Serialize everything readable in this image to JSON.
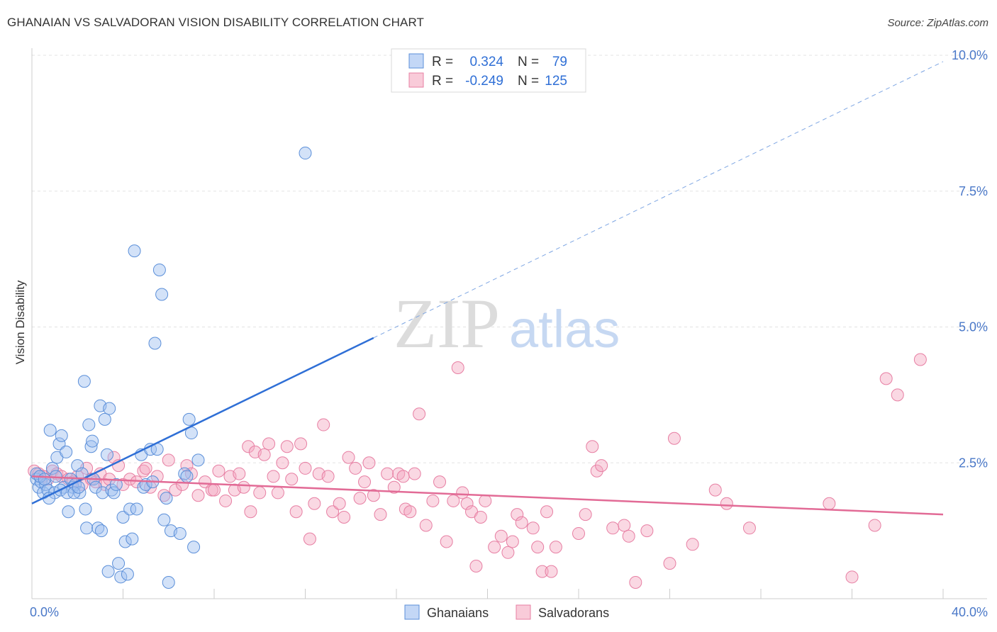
{
  "header": {
    "title": "GHANAIAN VS SALVADORAN VISION DISABILITY CORRELATION CHART",
    "source": "Source: ZipAtlas.com"
  },
  "watermark": {
    "part1": "ZIP",
    "part2": "atlas"
  },
  "chart_data": {
    "type": "scatter",
    "title": "GHANAIAN VS SALVADORAN VISION DISABILITY CORRELATION CHART",
    "xlabel": "",
    "ylabel": "Vision Disability",
    "xlim": [
      0,
      40
    ],
    "ylim": [
      0,
      10
    ],
    "x_tick_labels": [
      {
        "value": 0,
        "label": "0.0%"
      },
      {
        "value": 40,
        "label": "40.0%"
      }
    ],
    "y_tick_labels": [
      {
        "value": 2.5,
        "label": "2.5%"
      },
      {
        "value": 5.0,
        "label": "5.0%"
      },
      {
        "value": 7.5,
        "label": "7.5%"
      },
      {
        "value": 10.0,
        "label": "10.0%"
      }
    ],
    "legend": {
      "position": "top-center",
      "entries": [
        {
          "name": "Ghanaians",
          "r_label": "R =",
          "r_value": "0.324",
          "n_label": "N =",
          "n_value": "79",
          "color": "#9dbff0"
        },
        {
          "name": "Salvadorans",
          "r_label": "R =",
          "r_value": "-0.249",
          "n_label": "N =",
          "n_value": "125",
          "color": "#f4a9c2"
        }
      ]
    },
    "series": [
      {
        "name": "Ghanaians",
        "color": "#9dbff0",
        "stroke": "#5b8fd9",
        "trend": {
          "x0": 0,
          "y0": 1.75,
          "x1": 15.0,
          "y1": 4.8,
          "solid_to": 15.0,
          "dash_to": 40.0,
          "color": "#2f6fd6"
        },
        "points": [
          [
            0.2,
            2.2
          ],
          [
            0.3,
            2.05
          ],
          [
            0.4,
            2.15
          ],
          [
            0.5,
            1.95
          ],
          [
            0.6,
            2.1
          ],
          [
            0.7,
            2.0
          ],
          [
            0.8,
            3.1
          ],
          [
            0.9,
            2.4
          ],
          [
            1.0,
            1.95
          ],
          [
            1.1,
            2.6
          ],
          [
            1.2,
            2.85
          ],
          [
            1.3,
            3.0
          ],
          [
            1.4,
            2.05
          ],
          [
            1.5,
            2.7
          ],
          [
            1.6,
            1.6
          ],
          [
            1.7,
            2.2
          ],
          [
            1.8,
            2.05
          ],
          [
            1.9,
            2.1
          ],
          [
            2.0,
            2.45
          ],
          [
            2.1,
            1.95
          ],
          [
            2.2,
            2.3
          ],
          [
            2.3,
            4.0
          ],
          [
            2.35,
            1.65
          ],
          [
            2.4,
            1.3
          ],
          [
            2.5,
            3.2
          ],
          [
            2.6,
            2.8
          ],
          [
            2.65,
            2.9
          ],
          [
            2.7,
            2.2
          ],
          [
            2.8,
            2.05
          ],
          [
            2.9,
            1.3
          ],
          [
            3.0,
            3.55
          ],
          [
            3.1,
            1.95
          ],
          [
            3.2,
            3.3
          ],
          [
            3.3,
            2.65
          ],
          [
            3.4,
            3.5
          ],
          [
            3.5,
            2.0
          ],
          [
            3.6,
            1.95
          ],
          [
            3.7,
            2.1
          ],
          [
            3.8,
            0.65
          ],
          [
            3.9,
            0.4
          ],
          [
            4.0,
            1.5
          ],
          [
            4.1,
            1.05
          ],
          [
            4.2,
            0.45
          ],
          [
            4.3,
            1.65
          ],
          [
            4.4,
            1.1
          ],
          [
            4.5,
            6.4
          ],
          [
            4.6,
            1.65
          ],
          [
            4.8,
            2.65
          ],
          [
            4.9,
            2.05
          ],
          [
            5.0,
            2.1
          ],
          [
            5.2,
            2.75
          ],
          [
            5.3,
            2.15
          ],
          [
            5.4,
            4.7
          ],
          [
            5.5,
            2.75
          ],
          [
            5.6,
            6.05
          ],
          [
            5.7,
            5.6
          ],
          [
            5.8,
            1.45
          ],
          [
            5.9,
            1.85
          ],
          [
            6.0,
            0.3
          ],
          [
            6.1,
            1.25
          ],
          [
            6.5,
            1.2
          ],
          [
            6.7,
            2.3
          ],
          [
            6.8,
            2.25
          ],
          [
            6.9,
            3.3
          ],
          [
            7.0,
            3.05
          ],
          [
            7.1,
            0.95
          ],
          [
            7.3,
            2.55
          ],
          [
            0.2,
            2.3
          ],
          [
            0.35,
            2.25
          ],
          [
            0.55,
            2.2
          ],
          [
            0.75,
            1.85
          ],
          [
            1.05,
            2.25
          ],
          [
            1.25,
            2.0
          ],
          [
            1.55,
            1.95
          ],
          [
            1.85,
            1.95
          ],
          [
            2.05,
            2.05
          ],
          [
            3.05,
            1.25
          ],
          [
            3.35,
            0.5
          ],
          [
            12.0,
            8.2
          ]
        ]
      },
      {
        "name": "Salvadorans",
        "color": "#f4a9c2",
        "stroke": "#e77fa3",
        "trend": {
          "x0": 0,
          "y0": 2.25,
          "x1": 40.0,
          "y1": 1.55,
          "color": "#e26b96"
        },
        "points": [
          [
            0.1,
            2.35
          ],
          [
            0.3,
            2.3
          ],
          [
            0.5,
            2.25
          ],
          [
            0.7,
            2.2
          ],
          [
            0.9,
            2.35
          ],
          [
            1.1,
            2.3
          ],
          [
            1.3,
            2.25
          ],
          [
            1.6,
            2.2
          ],
          [
            1.8,
            2.15
          ],
          [
            2.0,
            2.25
          ],
          [
            2.2,
            2.1
          ],
          [
            2.4,
            2.4
          ],
          [
            2.6,
            2.2
          ],
          [
            2.8,
            2.15
          ],
          [
            3.0,
            2.3
          ],
          [
            3.2,
            2.1
          ],
          [
            3.4,
            2.2
          ],
          [
            3.6,
            2.6
          ],
          [
            3.8,
            2.45
          ],
          [
            4.0,
            2.1
          ],
          [
            4.3,
            2.2
          ],
          [
            4.6,
            2.15
          ],
          [
            4.9,
            2.35
          ],
          [
            5.2,
            2.05
          ],
          [
            5.5,
            2.25
          ],
          [
            5.8,
            1.9
          ],
          [
            6.0,
            2.55
          ],
          [
            6.3,
            2.0
          ],
          [
            6.6,
            2.1
          ],
          [
            6.8,
            2.45
          ],
          [
            7.0,
            2.3
          ],
          [
            7.3,
            1.9
          ],
          [
            7.6,
            2.15
          ],
          [
            7.9,
            2.0
          ],
          [
            8.2,
            2.35
          ],
          [
            8.5,
            1.8
          ],
          [
            8.7,
            2.25
          ],
          [
            8.9,
            2.0
          ],
          [
            9.1,
            2.3
          ],
          [
            9.3,
            2.05
          ],
          [
            9.5,
            2.8
          ],
          [
            9.6,
            1.6
          ],
          [
            9.8,
            2.7
          ],
          [
            10.0,
            1.95
          ],
          [
            10.2,
            2.65
          ],
          [
            10.4,
            2.85
          ],
          [
            10.6,
            2.25
          ],
          [
            10.8,
            1.95
          ],
          [
            11.0,
            2.5
          ],
          [
            11.2,
            2.8
          ],
          [
            11.4,
            2.2
          ],
          [
            11.6,
            1.6
          ],
          [
            11.8,
            2.85
          ],
          [
            12.0,
            2.4
          ],
          [
            12.2,
            1.1
          ],
          [
            12.4,
            1.75
          ],
          [
            12.6,
            2.3
          ],
          [
            12.8,
            3.2
          ],
          [
            13.0,
            2.25
          ],
          [
            13.2,
            1.6
          ],
          [
            13.5,
            1.75
          ],
          [
            13.7,
            1.5
          ],
          [
            13.9,
            2.6
          ],
          [
            14.2,
            2.4
          ],
          [
            14.4,
            1.85
          ],
          [
            14.6,
            2.15
          ],
          [
            14.8,
            2.5
          ],
          [
            15.0,
            1.9
          ],
          [
            15.3,
            1.55
          ],
          [
            15.6,
            2.3
          ],
          [
            15.9,
            2.05
          ],
          [
            16.1,
            2.3
          ],
          [
            16.4,
            1.65
          ],
          [
            16.6,
            1.6
          ],
          [
            16.8,
            2.3
          ],
          [
            17.0,
            3.4
          ],
          [
            17.3,
            1.35
          ],
          [
            17.6,
            1.8
          ],
          [
            17.9,
            2.15
          ],
          [
            18.2,
            1.05
          ],
          [
            18.5,
            1.8
          ],
          [
            18.7,
            4.25
          ],
          [
            18.9,
            1.95
          ],
          [
            19.1,
            1.75
          ],
          [
            19.3,
            1.6
          ],
          [
            19.5,
            0.6
          ],
          [
            19.7,
            1.5
          ],
          [
            19.9,
            1.8
          ],
          [
            20.3,
            0.95
          ],
          [
            20.6,
            1.15
          ],
          [
            20.9,
            0.85
          ],
          [
            21.1,
            1.05
          ],
          [
            21.3,
            1.55
          ],
          [
            22.0,
            1.3
          ],
          [
            22.2,
            0.95
          ],
          [
            22.4,
            0.5
          ],
          [
            22.6,
            1.6
          ],
          [
            22.8,
            0.5
          ],
          [
            23.0,
            0.95
          ],
          [
            24.0,
            1.2
          ],
          [
            24.3,
            1.55
          ],
          [
            24.6,
            2.8
          ],
          [
            24.8,
            2.35
          ],
          [
            25.0,
            2.45
          ],
          [
            26.0,
            1.35
          ],
          [
            26.2,
            1.15
          ],
          [
            26.5,
            0.3
          ],
          [
            27.0,
            1.25
          ],
          [
            28.0,
            0.65
          ],
          [
            28.2,
            2.95
          ],
          [
            29.0,
            1.0
          ],
          [
            30.0,
            2.0
          ],
          [
            30.5,
            1.75
          ],
          [
            31.5,
            1.3
          ],
          [
            35.0,
            1.75
          ],
          [
            36.0,
            0.4
          ],
          [
            37.0,
            1.35
          ],
          [
            37.5,
            4.05
          ],
          [
            38.0,
            3.75
          ],
          [
            39.0,
            4.4
          ],
          [
            16.3,
            2.25
          ],
          [
            8.0,
            2.0
          ],
          [
            21.5,
            1.4
          ],
          [
            25.5,
            1.3
          ],
          [
            5.0,
            2.4
          ]
        ]
      }
    ]
  }
}
